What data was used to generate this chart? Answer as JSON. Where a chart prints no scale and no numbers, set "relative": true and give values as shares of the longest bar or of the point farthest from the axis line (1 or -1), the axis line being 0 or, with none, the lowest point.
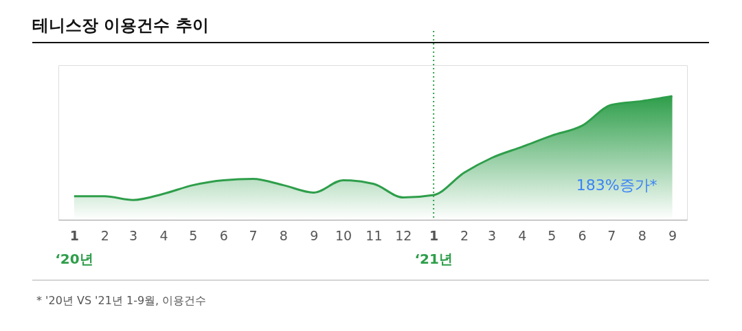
{
  "chart_data": {
    "type": "area",
    "title": "테니스장 이용건수 추이",
    "relative": true,
    "x": [
      "2020-01",
      "2020-02",
      "2020-03",
      "2020-04",
      "2020-05",
      "2020-06",
      "2020-07",
      "2020-08",
      "2020-09",
      "2020-10",
      "2020-11",
      "2020-12",
      "2021-01",
      "2021-02",
      "2021-03",
      "2021-04",
      "2021-05",
      "2021-06",
      "2021-07",
      "2021-08",
      "2021-09"
    ],
    "xlim": [
      "2019-12-16",
      "2021-09-16"
    ],
    "xticks": [
      {
        "value": "2020-01",
        "label": "1"
      },
      {
        "value": "2020-02",
        "label": "2"
      },
      {
        "value": "2020-03",
        "label": "3"
      },
      {
        "value": "2020-04",
        "label": "4"
      },
      {
        "value": "2020-05",
        "label": "5"
      },
      {
        "value": "2020-06",
        "label": "6"
      },
      {
        "value": "2020-07",
        "label": "7"
      },
      {
        "value": "2020-08",
        "label": "8"
      },
      {
        "value": "2020-09",
        "label": "9"
      },
      {
        "value": "2020-10",
        "label": "10"
      },
      {
        "value": "2020-11",
        "label": "11"
      },
      {
        "value": "2020-12",
        "label": "12"
      },
      {
        "value": "2021-01",
        "label": "1"
      },
      {
        "value": "2021-02",
        "label": "2"
      },
      {
        "value": "2021-03",
        "label": "3"
      },
      {
        "value": "2021-04",
        "label": "4"
      },
      {
        "value": "2021-05",
        "label": "5"
      },
      {
        "value": "2021-06",
        "label": "6"
      },
      {
        "value": "2021-07",
        "label": "7"
      },
      {
        "value": "2021-08",
        "label": "8"
      },
      {
        "value": "2021-09",
        "label": "9"
      }
    ],
    "series": [
      {
        "color": "#2e9e4a",
        "values": [
          0.19,
          0.19,
          0.16,
          0.21,
          0.28,
          0.32,
          0.33,
          0.28,
          0.22,
          0.32,
          0.29,
          0.18,
          0.2,
          0.38,
          0.5,
          0.59,
          0.68,
          0.76,
          0.93,
          0.96,
          1
        ]
      }
    ],
    "ref_lines": [
      {
        "axis": "x",
        "value": "2021-01",
        "color": "#2e9e4a",
        "line_style": "dotted"
      }
    ],
    "annotations": [
      "‘20년",
      "‘21년",
      "183%증가*",
      "* '20년 VS '21년 1-9월, 이용건수"
    ],
    "grid": false
  }
}
